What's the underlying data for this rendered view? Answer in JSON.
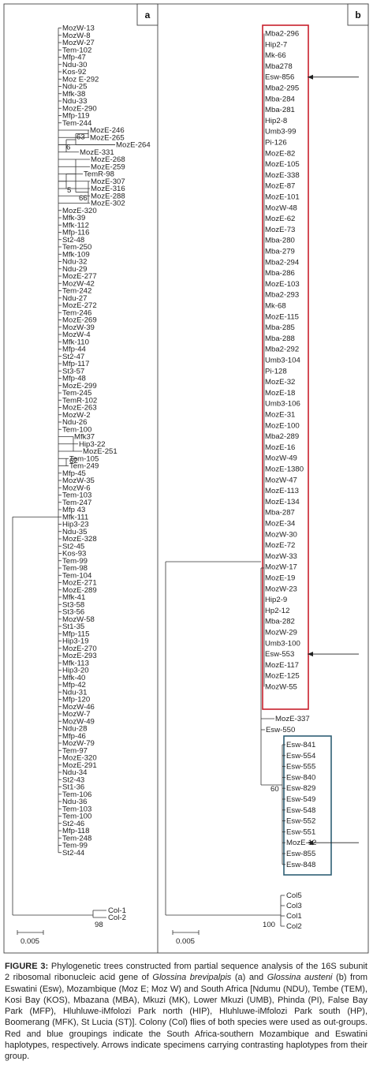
{
  "panels": [
    {
      "letter": "a",
      "labels": [
        "MozW-13",
        "MozW-8",
        "MozW-27",
        "Tem-102",
        "Mfp-47",
        "Ndu-30",
        "Kos-92",
        "Moz E-292",
        "Ndu-25",
        "Mfk-38",
        "Ndu-33",
        "MozE-290",
        "Mfp-119",
        "Tem-244",
        "MozE-246",
        "MozE-265",
        "MozE-264",
        "MozE-331",
        "MozE-268",
        "MozE-259",
        "TemR-98",
        "MozE-307",
        "MozE-316",
        "MozE-288",
        "MozE-302",
        "MozE-320",
        "Mfk-39",
        "Mfk-112",
        "Mfp-116",
        "St2-48",
        "Tem-250",
        "Mfk-109",
        "Ndu-32",
        "Ndu-29",
        "MozE-277",
        "MozW-42",
        "Tem-242",
        "Ndu-27",
        "MozE-272",
        "Tem-246",
        "MozE-269",
        "MozW-39",
        "MozW-4",
        "Mfk-110",
        "Mfp-44",
        "St2-47",
        "Mfp-117",
        "St3-57",
        "Mfp-48",
        "MozE-299",
        "Tem-245",
        "TemR-102",
        "MozE-263",
        "MozW-2",
        "Ndu-26",
        "Tem-100",
        "Mfk37",
        "Hip3-22",
        "MozE-251",
        "Tem-105",
        "Tem-249",
        "Mfp-45",
        "MozW-35",
        "MozW-6",
        "Tem-103",
        "Tem-247",
        "Mfp 43",
        "Mfk-111",
        "Hip3-23",
        "Ndu-35",
        "MozE-328",
        "St2-45",
        "Kos-93",
        "Tem-99",
        "Tem-98",
        "Tem-104",
        "MozE-271",
        "MozE-289",
        "Mfk-41",
        "St3-58",
        "St3-56",
        "MozW-58",
        "St1-35",
        "Mfp-115",
        "Hip3-19",
        "MozE-270",
        "MozE-293",
        "Mfk-113",
        "Hip3-20",
        "Mfk-40",
        "Mfp-42",
        "Ndu-31",
        "Mfp-120",
        "MozW-46",
        "MozW-7",
        "MozW-49",
        "Ndu-28",
        "Mfp-46",
        "MozW-79",
        "Tem-97",
        "MozE-320",
        "MozE-291",
        "Ndu-34",
        "St2-43",
        "St1-36",
        "Tem-106",
        "Ndu-36",
        "Tem-103",
        "Tem-100",
        "St2-46",
        "Mfp-118",
        "Tem-248",
        "Tem-99",
        "St2-44"
      ],
      "outgroup": [
        "Col-1",
        "Col-2"
      ],
      "bootstrap": [
        "63",
        "6",
        "5",
        "66",
        "62",
        "98"
      ],
      "scale": "0.005"
    },
    {
      "letter": "b",
      "red_labels": [
        "Mba2-296",
        "Hip2-7",
        "Mk-66",
        "Mba278",
        "Esw-856",
        "Mba2-295",
        "Mba-284",
        "Mba-281",
        "Hip2-8",
        "Umb3-99",
        "Pi-126",
        "MozE-82",
        "MozE-105",
        "MozE-338",
        "MozE-87",
        "MozE-101",
        "MozW-48",
        "MozE-62",
        "MozE-73",
        "Mba-280",
        "Mba-279",
        "Mba2-294",
        "Mba-286",
        "MozE-103",
        "Mba2-293",
        "Mk-68",
        "MozE-115",
        "Mba-285",
        "Mba-288",
        "Mba2-292",
        "Umb3-104",
        "Pi-128",
        "MozE-32",
        "MozE-18",
        "Umb3-106",
        "MozE-31",
        "MozE-100",
        "Mba2-289",
        "MozE-16",
        "MozW-49",
        "MozE-1380",
        "MozW-47",
        "MozE-113",
        "MozE-134",
        "Mba-287",
        "MozE-34",
        "MozW-30",
        "MozE-72",
        "MozW-33",
        "MozW-17",
        "MozE-19",
        "MozW-23",
        "Hip2-9",
        "Hp2-12",
        "Mba-282",
        "MozW-29",
        "Umb3-100",
        "Esw-553",
        "MozE-117",
        "MozE-125",
        "MozW-55"
      ],
      "mid_labels": [
        "MozE-337",
        "Esw-550"
      ],
      "blue_labels": [
        "Esw-841",
        "Esw-554",
        "Esw-555",
        "Esw-840",
        "Esw-829",
        "Esw-549",
        "Esw-548",
        "Esw-552",
        "Esw-551",
        "MozE-12",
        "Esw-855",
        "Esw-848"
      ],
      "outgroup": [
        "Col5",
        "Col3",
        "Col1",
        "Col2"
      ],
      "bootstrap": [
        "60",
        "100"
      ],
      "scale": "0.005",
      "arrow_targets": [
        "Esw-856",
        "Esw-553",
        "MozE-12"
      ]
    }
  ],
  "colors": {
    "red_box": "#c8202c",
    "blue_box": "#2f5f74",
    "line": "#333333"
  },
  "caption": {
    "figure_no": "FIGURE 3:",
    "text_a": " Phylogenetic trees constructed from partial sequence analysis of the 16S subunit 2 ribosomal ribonucleic acid gene of ",
    "sp1": "Glossina brevipalpis",
    "text_b": " (a) and ",
    "sp2": "Glossina austeni",
    "text_c": " (b) from Eswatini (Esw), Mozambique (Moz E; Moz W) and South Africa [Ndumu (NDU), Tembe (TEM), Kosi Bay (KOS), Mbazana (MBA), Mkuzi (MK), Lower Mkuzi (UMB), Phinda (PI), False Bay Park (MFP), Hluhluwe-iMfolozi Park north (HIP), Hluhluwe-iMfolozi Park south (HP), Boomerang (MFK), St Lucia (ST)]. Colony (Col) flies of both species were used as out-groups. Red and blue groupings indicate the South Africa-southern Mozambique and Eswatini haplotypes, respectively. Arrows indicate specimens carrying contrasting haplotypes from their group."
  }
}
